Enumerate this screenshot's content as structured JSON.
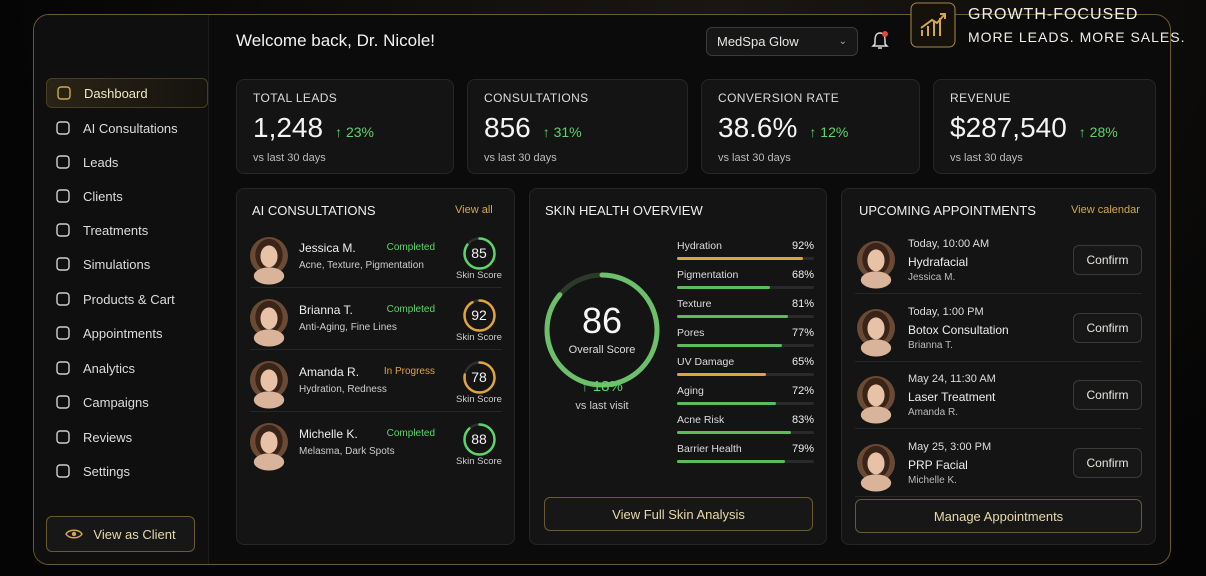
{
  "brand": {
    "line1": "GROWTH-FOCUSED",
    "line2": "MORE LEADS. MORE SALES."
  },
  "header": {
    "welcome": "Welcome back, Dr. Nicole!",
    "clinic": "MedSpa Glow"
  },
  "nav": [
    "Dashboard",
    "AI Consultations",
    "Leads",
    "Clients",
    "Treatments",
    "Simulations",
    "Products & Cart",
    "Appointments",
    "Analytics",
    "Campaigns",
    "Reviews",
    "Settings"
  ],
  "view_as_client": "View as Client",
  "stats": [
    {
      "label": "TOTAL LEADS",
      "value": "1,248",
      "change": "↑ 23%",
      "note": "vs last 30 days"
    },
    {
      "label": "CONSULTATIONS",
      "value": "856",
      "change": "↑ 31%",
      "note": "vs last 30 days"
    },
    {
      "label": "CONVERSION RATE",
      "value": "38.6%",
      "change": "↑ 12%",
      "note": "vs last 30 days"
    },
    {
      "label": "REVENUE",
      "value": "$287,540",
      "change": "↑ 28%",
      "note": "vs last 30 days"
    }
  ],
  "consultations": {
    "title": "AI CONSULTATIONS",
    "link": "View all",
    "score_label": "Skin Score",
    "items": [
      {
        "name": "Jessica M.",
        "status": "Completed",
        "concerns": "Acne, Texture, Pigmentation",
        "score": 85,
        "color": "#5dd36a"
      },
      {
        "name": "Brianna T.",
        "status": "Completed",
        "concerns": "Anti-Aging, Fine Lines",
        "score": 92,
        "color": "#e0a53a"
      },
      {
        "name": "Amanda R.",
        "status": "In Progress",
        "concerns": "Hydration, Redness",
        "score": 78,
        "color": "#e0a53a"
      },
      {
        "name": "Michelle K.",
        "status": "Completed",
        "concerns": "Melasma, Dark Spots",
        "score": 88,
        "color": "#5dd36a"
      }
    ]
  },
  "skin": {
    "title": "SKIN HEALTH OVERVIEW",
    "score": 86,
    "score_label": "Overall Score",
    "change": "↑ 18%",
    "note": "vs last visit",
    "button": "View Full Skin Analysis",
    "metrics": [
      {
        "name": "Hydration",
        "value": {
          "value": 92,
          "label": "92%"
        },
        "color": "#d9a83a"
      },
      {
        "name": "Pigmentation",
        "value": {
          "value": 68,
          "label": "68%"
        },
        "color": "#5dbb5a"
      },
      {
        "name": "Texture",
        "value": {
          "value": 81,
          "label": "81%"
        },
        "color": "#5dbb5a"
      },
      {
        "name": "Pores",
        "value": {
          "value": 77,
          "label": "77%"
        },
        "color": "#5dbb5a"
      },
      {
        "name": "UV Damage",
        "value": {
          "value": 65,
          "label": "65%"
        },
        "color": "#d9a83a"
      },
      {
        "name": "Aging",
        "value": {
          "value": 72,
          "label": "72%"
        },
        "color": "#5dbb5a"
      },
      {
        "name": "Acne Risk",
        "value": {
          "value": 83,
          "label": "83%"
        },
        "color": "#5dbb5a"
      },
      {
        "name": "Barrier Health",
        "value": {
          "value": 79,
          "label": "79%"
        },
        "color": "#5dbb5a"
      }
    ]
  },
  "appointments": {
    "title": "UPCOMING APPOINTMENTS",
    "link": "View calendar",
    "confirm": "Confirm",
    "button": "Manage Appointments",
    "items": [
      {
        "time": "Today, 10:00 AM",
        "treatment": "Hydrafacial",
        "client": "Jessica M."
      },
      {
        "time": "Today, 1:00 PM",
        "treatment": "Botox Consultation",
        "client": "Brianna T."
      },
      {
        "time": "May 24, 11:30 AM",
        "treatment": "Laser Treatment",
        "client": "Amanda R."
      },
      {
        "time": "May 25, 3:00 PM",
        "treatment": "PRP Facial",
        "client": "Michelle K."
      }
    ]
  }
}
